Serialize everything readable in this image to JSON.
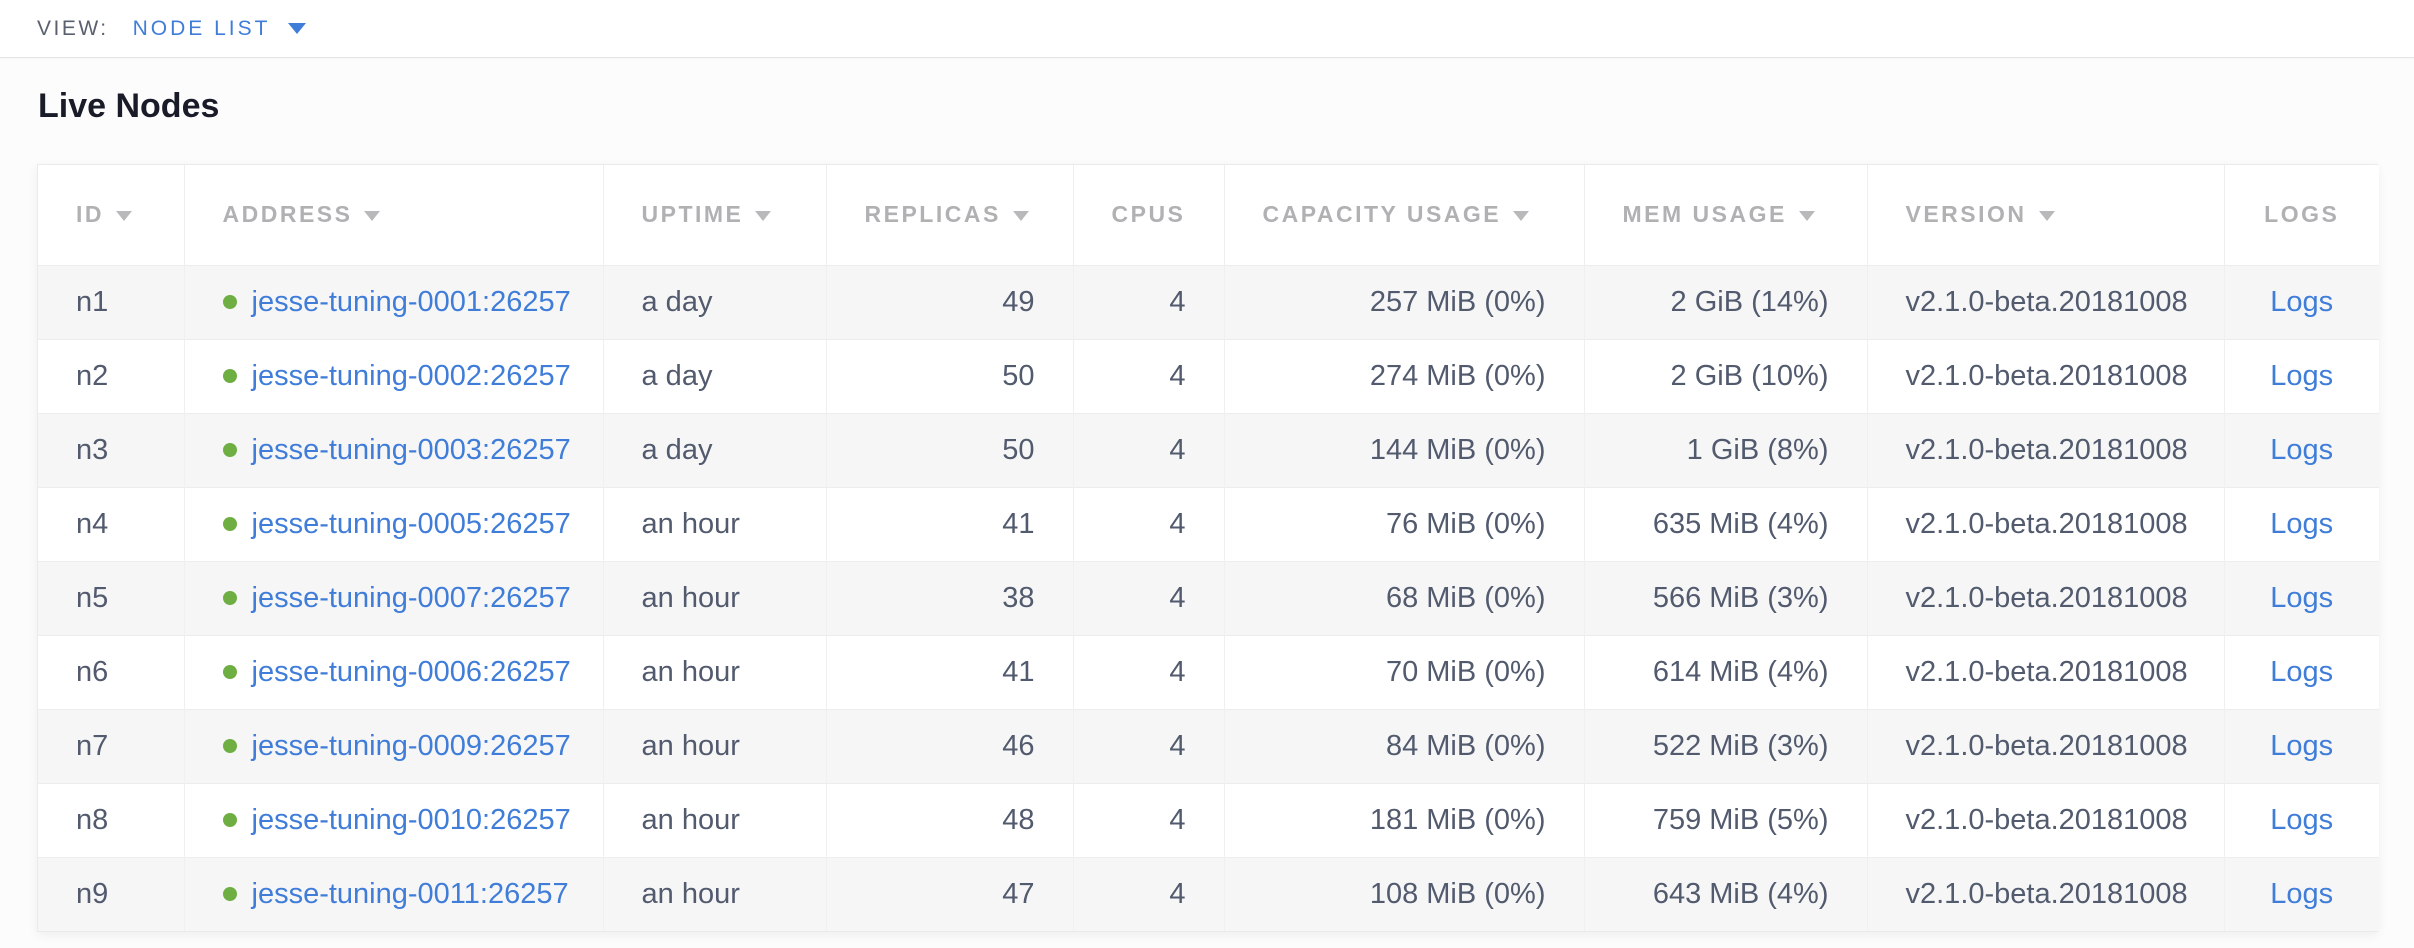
{
  "view_bar": {
    "label": "VIEW:",
    "selected_view": "NODE LIST"
  },
  "page": {
    "title": "Live Nodes"
  },
  "colors": {
    "link_blue": "#3f7dd9",
    "healthy_green": "#6eae42",
    "header_gray": "#b1b1b3",
    "cell_text": "#525a6e",
    "row_stripe": "#f6f6f7"
  },
  "icons": {
    "view_dropdown": "chevron-down-icon",
    "column_sort": "sort-desc-icon",
    "node_status": "healthy-dot-icon"
  },
  "table": {
    "columns": [
      {
        "key": "id",
        "label": "ID",
        "sortable": true
      },
      {
        "key": "address",
        "label": "ADDRESS",
        "sortable": true
      },
      {
        "key": "uptime",
        "label": "UPTIME",
        "sortable": true
      },
      {
        "key": "replicas",
        "label": "REPLICAS",
        "sortable": true
      },
      {
        "key": "cpus",
        "label": "CPUS",
        "sortable": false
      },
      {
        "key": "capacity",
        "label": "CAPACITY USAGE",
        "sortable": true
      },
      {
        "key": "mem",
        "label": "MEM USAGE",
        "sortable": true
      },
      {
        "key": "version",
        "label": "VERSION",
        "sortable": true
      },
      {
        "key": "logs",
        "label": "LOGS",
        "sortable": false
      }
    ],
    "rows": [
      {
        "id": "n1",
        "status": "healthy",
        "address": "jesse-tuning-0001:26257",
        "uptime": "a day",
        "replicas": "49",
        "cpus": "4",
        "capacity": "257 MiB (0%)",
        "mem": "2 GiB (14%)",
        "version": "v2.1.0-beta.20181008",
        "logs": "Logs"
      },
      {
        "id": "n2",
        "status": "healthy",
        "address": "jesse-tuning-0002:26257",
        "uptime": "a day",
        "replicas": "50",
        "cpus": "4",
        "capacity": "274 MiB (0%)",
        "mem": "2 GiB (10%)",
        "version": "v2.1.0-beta.20181008",
        "logs": "Logs"
      },
      {
        "id": "n3",
        "status": "healthy",
        "address": "jesse-tuning-0003:26257",
        "uptime": "a day",
        "replicas": "50",
        "cpus": "4",
        "capacity": "144 MiB (0%)",
        "mem": "1 GiB (8%)",
        "version": "v2.1.0-beta.20181008",
        "logs": "Logs"
      },
      {
        "id": "n4",
        "status": "healthy",
        "address": "jesse-tuning-0005:26257",
        "uptime": "an hour",
        "replicas": "41",
        "cpus": "4",
        "capacity": "76 MiB (0%)",
        "mem": "635 MiB (4%)",
        "version": "v2.1.0-beta.20181008",
        "logs": "Logs"
      },
      {
        "id": "n5",
        "status": "healthy",
        "address": "jesse-tuning-0007:26257",
        "uptime": "an hour",
        "replicas": "38",
        "cpus": "4",
        "capacity": "68 MiB (0%)",
        "mem": "566 MiB (3%)",
        "version": "v2.1.0-beta.20181008",
        "logs": "Logs"
      },
      {
        "id": "n6",
        "status": "healthy",
        "address": "jesse-tuning-0006:26257",
        "uptime": "an hour",
        "replicas": "41",
        "cpus": "4",
        "capacity": "70 MiB (0%)",
        "mem": "614 MiB (4%)",
        "version": "v2.1.0-beta.20181008",
        "logs": "Logs"
      },
      {
        "id": "n7",
        "status": "healthy",
        "address": "jesse-tuning-0009:26257",
        "uptime": "an hour",
        "replicas": "46",
        "cpus": "4",
        "capacity": "84 MiB (0%)",
        "mem": "522 MiB (3%)",
        "version": "v2.1.0-beta.20181008",
        "logs": "Logs"
      },
      {
        "id": "n8",
        "status": "healthy",
        "address": "jesse-tuning-0010:26257",
        "uptime": "an hour",
        "replicas": "48",
        "cpus": "4",
        "capacity": "181 MiB (0%)",
        "mem": "759 MiB (5%)",
        "version": "v2.1.0-beta.20181008",
        "logs": "Logs"
      },
      {
        "id": "n9",
        "status": "healthy",
        "address": "jesse-tuning-0011:26257",
        "uptime": "an hour",
        "replicas": "47",
        "cpus": "4",
        "capacity": "108 MiB (0%)",
        "mem": "643 MiB (4%)",
        "version": "v2.1.0-beta.20181008",
        "logs": "Logs"
      }
    ]
  }
}
